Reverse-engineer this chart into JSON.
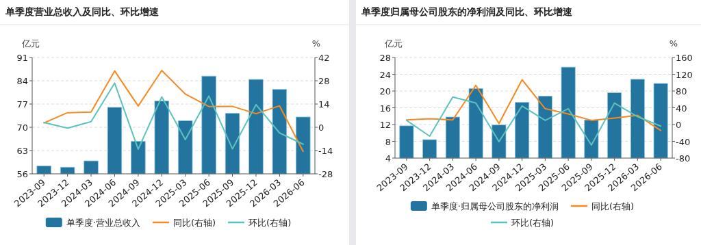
{
  "chart_data": [
    {
      "type": "bar",
      "title": "单季度营业总收入及同比、环比增速",
      "ylabel": "亿元",
      "y2label": "%",
      "categories": [
        "2023-09",
        "2023-12",
        "2024-03",
        "2024-06",
        "2024-09",
        "2024-12",
        "2025-03",
        "2025-06",
        "2025-09",
        "2025-12",
        "2026-03",
        "2026-06"
      ],
      "series": [
        {
          "name": "单季度·营业总收入",
          "color": "#23759f",
          "values": [
            58.4,
            58.0,
            59.9,
            76.0,
            65.8,
            77.9,
            72.0,
            85.4,
            74.2,
            84.4,
            81.4,
            73.1
          ]
        },
        {
          "name": "同比(右轴)",
          "type": "line",
          "axis": "y2",
          "color": "#f7891f",
          "values": [
            2.6,
            8.8,
            9.2,
            33.9,
            12.8,
            34.2,
            20.0,
            12.5,
            12.6,
            8.2,
            12.9,
            -14.5
          ]
        },
        {
          "name": "环比(右轴)",
          "type": "line",
          "axis": "y2",
          "color": "#5cc2bd",
          "values": [
            2.9,
            -0.5,
            3.4,
            26.6,
            -13.2,
            18.3,
            -7.4,
            18.8,
            -13.0,
            13.6,
            -3.4,
            -10.2
          ]
        }
      ],
      "ylim": [
        56,
        91
      ],
      "yticks": [
        56,
        63,
        70,
        77,
        84,
        91
      ],
      "y2lim": [
        -28,
        42
      ],
      "y2ticks": [
        -28,
        -14,
        0,
        14,
        28,
        42
      ],
      "grid": "y",
      "legend": "bottom"
    },
    {
      "type": "bar",
      "title": "单季度归属母公司股东的净利润及同比、环比增速",
      "ylabel": "亿元",
      "y2label": "%",
      "categories": [
        "2023-09",
        "2023-12",
        "2024-03",
        "2024-06",
        "2024-09",
        "2024-12",
        "2025-03",
        "2025-06",
        "2025-09",
        "2025-12",
        "2026-03",
        "2026-06"
      ],
      "series": [
        {
          "name": "单季度·归属母公司股东的净利润",
          "color": "#23759f",
          "values": [
            11.7,
            8.4,
            13.8,
            20.6,
            11.9,
            17.3,
            18.8,
            25.7,
            13.1,
            19.6,
            22.8,
            21.8
          ]
        },
        {
          "name": "同比(右轴)",
          "type": "line",
          "axis": "y2",
          "color": "#f7891f",
          "values": [
            11.1,
            13.8,
            11.1,
            93.4,
            2.3,
            107,
            37.8,
            25.3,
            10,
            15.4,
            22,
            -14
          ]
        },
        {
          "name": "环比(右轴)",
          "type": "line",
          "axis": "y2",
          "color": "#5cc2bd",
          "values": [
            10,
            -27.7,
            65.6,
            51.4,
            -40.8,
            44.3,
            10,
            37.8,
            -49,
            51.4,
            18.7,
            -3.7
          ]
        }
      ],
      "ylim": [
        4,
        28
      ],
      "yticks": [
        4,
        8,
        12,
        16,
        20,
        24,
        28
      ],
      "y2lim": [
        -80,
        160
      ],
      "y2ticks": [
        -80,
        -40,
        0,
        40,
        80,
        120,
        160
      ],
      "grid": "y",
      "legend": "bottom"
    }
  ]
}
